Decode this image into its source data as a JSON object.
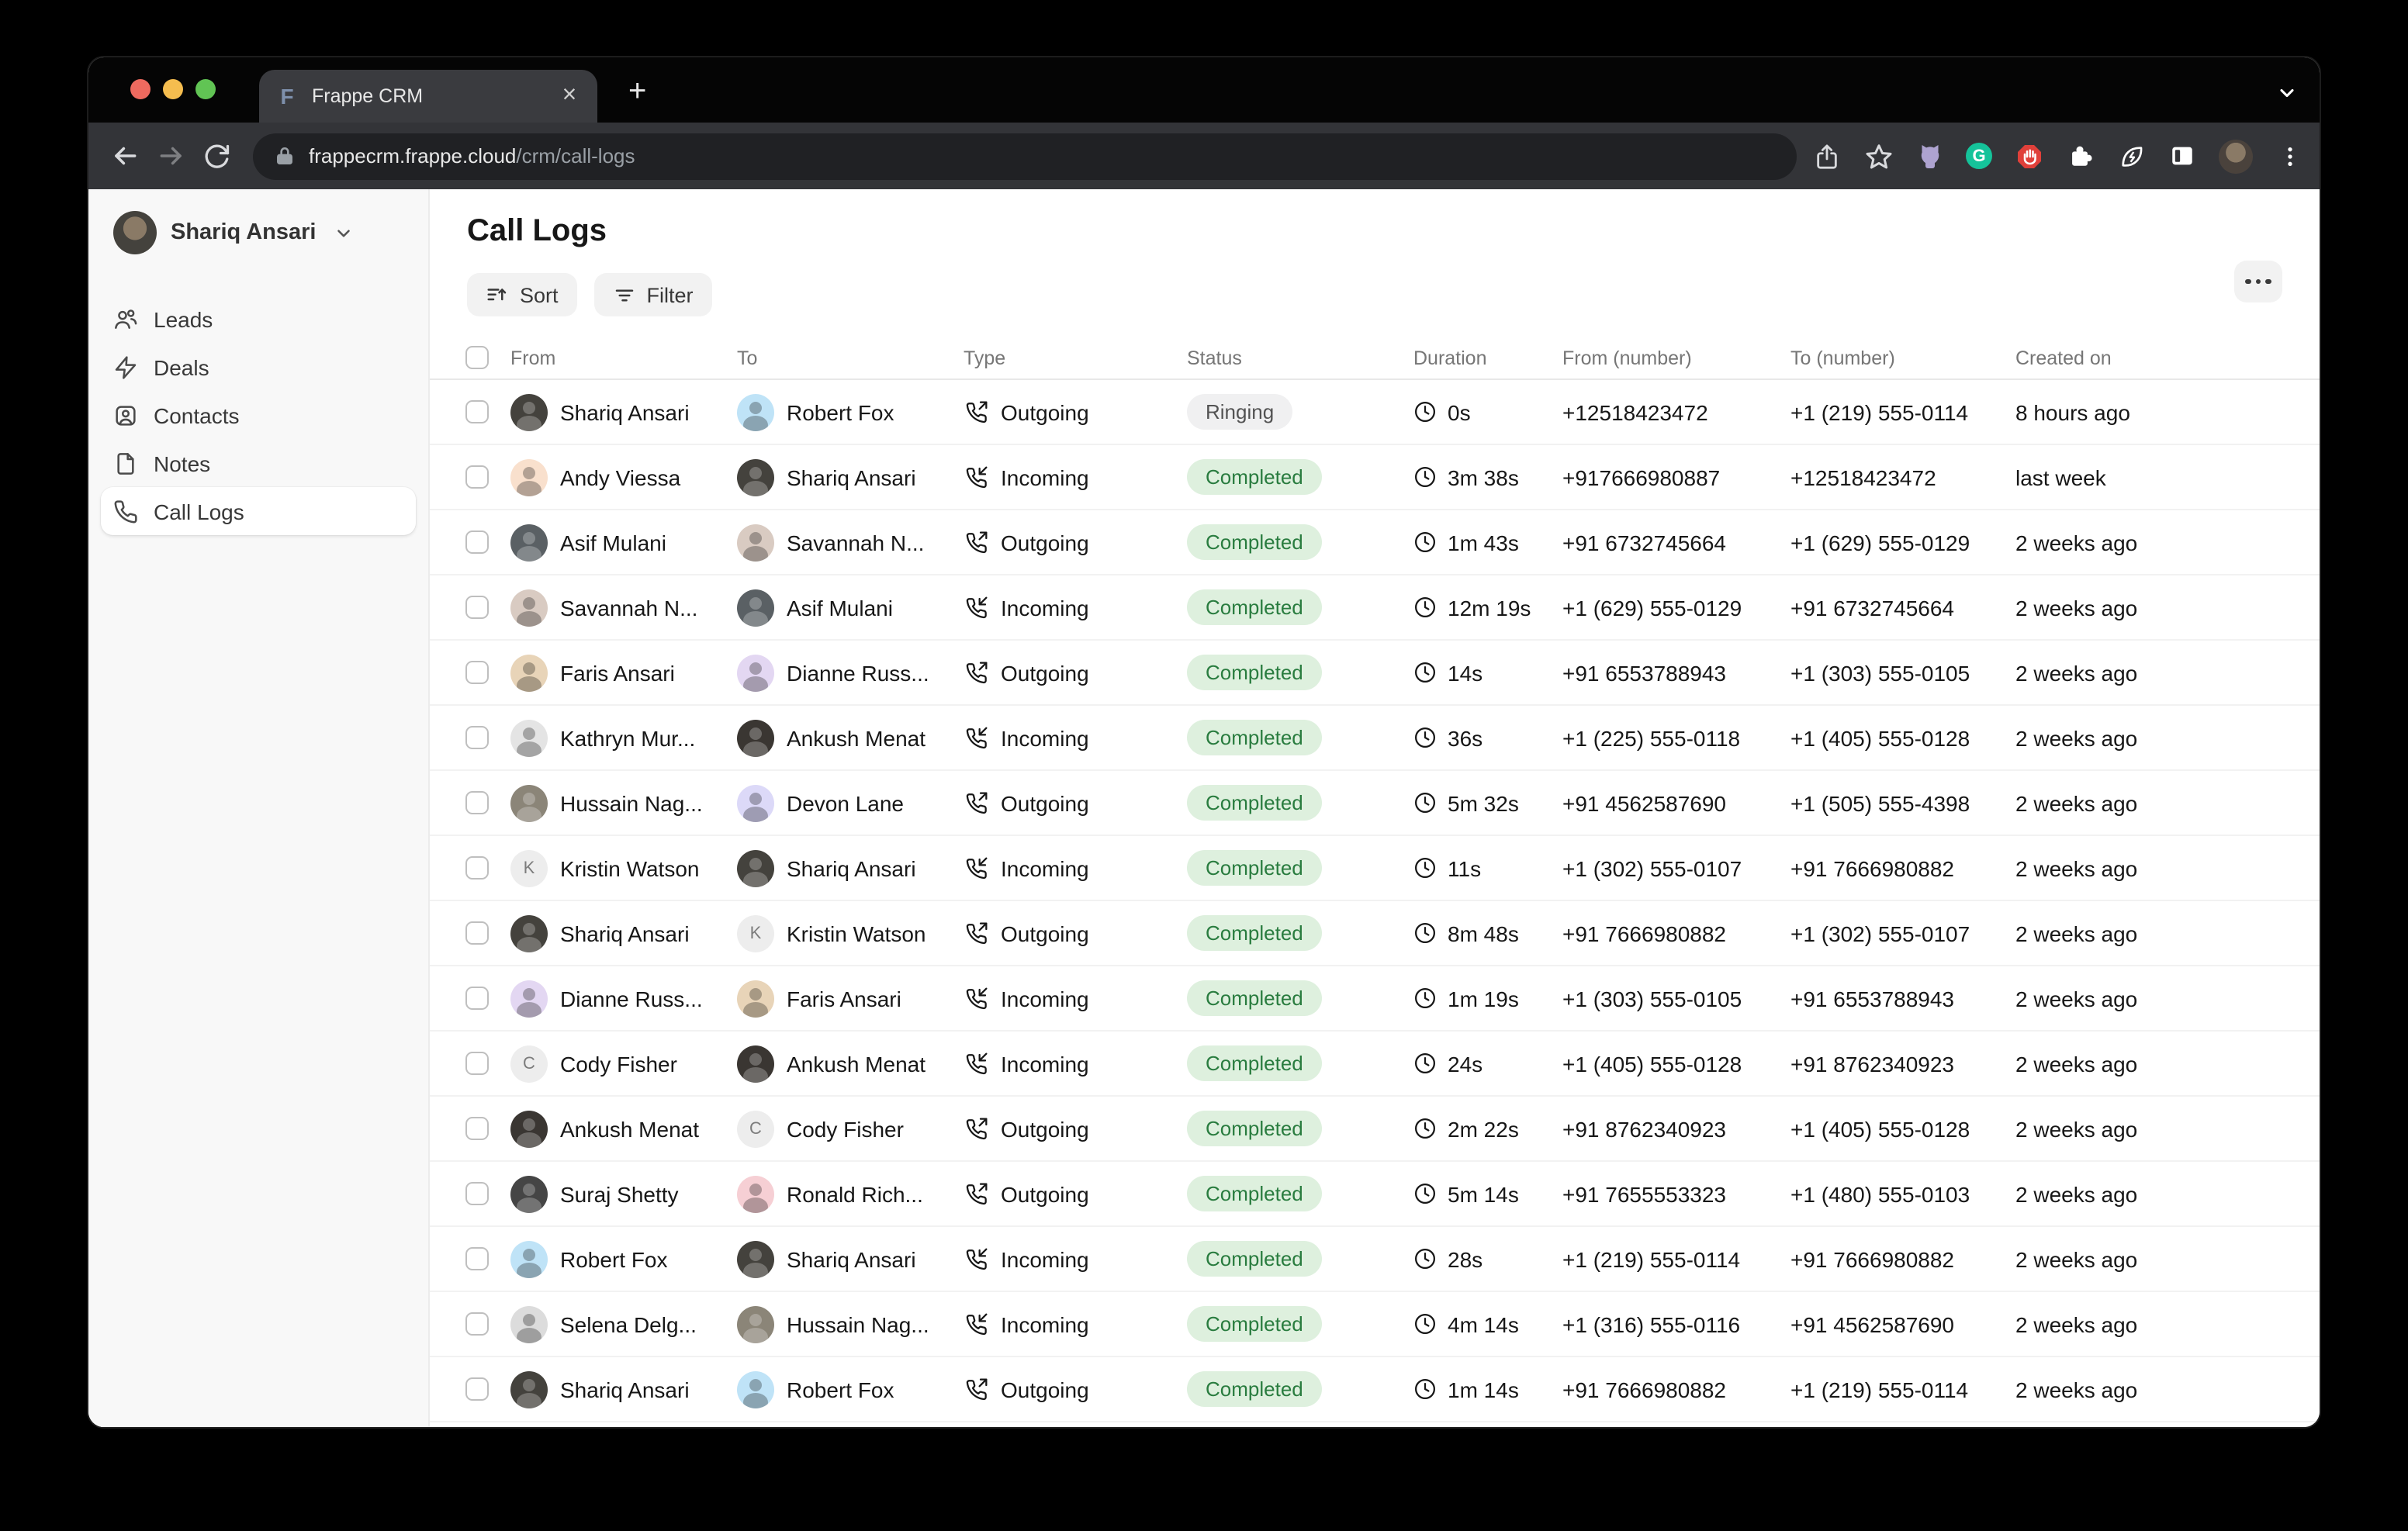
{
  "browser": {
    "tab_title": "Frappe CRM",
    "tab_favicon": "F",
    "url_host": "frappecrm.frappe.cloud",
    "url_path": "/crm/call-logs",
    "traffic_lights": [
      "#ee6a5f",
      "#f5bd4f",
      "#61c454"
    ],
    "grammarly_letter": "G"
  },
  "sidebar": {
    "user": "Shariq Ansari",
    "items": [
      {
        "label": "Leads",
        "icon": "leads-icon"
      },
      {
        "label": "Deals",
        "icon": "deals-icon"
      },
      {
        "label": "Contacts",
        "icon": "contacts-icon"
      },
      {
        "label": "Notes",
        "icon": "notes-icon"
      },
      {
        "label": "Call Logs",
        "icon": "phone-icon",
        "active": true
      }
    ]
  },
  "main": {
    "title": "Call Logs",
    "sort_label": "Sort",
    "filter_label": "Filter"
  },
  "table": {
    "columns": [
      "From",
      "To",
      "Type",
      "Status",
      "Duration",
      "From (number)",
      "To (number)",
      "Created on"
    ],
    "rows": [
      {
        "from": {
          "name": "Shariq Ansari",
          "kind": "photo",
          "color": "#44423d"
        },
        "to": {
          "name": "Robert Fox",
          "kind": "face",
          "color": "#bfe3f7"
        },
        "type": "Outgoing",
        "status": "Ringing",
        "duration": "0s",
        "from_number": "+12518423472",
        "to_number": "+1 (219) 555-0114",
        "created": "8 hours ago"
      },
      {
        "from": {
          "name": "Andy Viessa",
          "kind": "face",
          "color": "#f9e0cd"
        },
        "to": {
          "name": "Shariq Ansari",
          "kind": "photo",
          "color": "#44423d"
        },
        "type": "Incoming",
        "status": "Completed",
        "duration": "3m 38s",
        "from_number": "+917666980887",
        "to_number": "+12518423472",
        "created": "last week"
      },
      {
        "from": {
          "name": "Asif Mulani",
          "kind": "photo",
          "color": "#5a6064"
        },
        "to": {
          "name": "Savannah N...",
          "kind": "face",
          "color": "#d9cbc2"
        },
        "type": "Outgoing",
        "status": "Completed",
        "duration": "1m 43s",
        "from_number": "+91 6732745664",
        "to_number": "+1 (629) 555-0129",
        "created": "2 weeks ago"
      },
      {
        "from": {
          "name": "Savannah N...",
          "kind": "face",
          "color": "#d9cbc2"
        },
        "to": {
          "name": "Asif Mulani",
          "kind": "photo",
          "color": "#5a6064"
        },
        "type": "Incoming",
        "status": "Completed",
        "duration": "12m 19s",
        "from_number": "+1 (629) 555-0129",
        "to_number": "+91 6732745664",
        "created": "2 weeks ago"
      },
      {
        "from": {
          "name": "Faris Ansari",
          "kind": "face",
          "color": "#e8d4b8"
        },
        "to": {
          "name": "Dianne Russ...",
          "kind": "face",
          "color": "#e3d7f2"
        },
        "type": "Outgoing",
        "status": "Completed",
        "duration": "14s",
        "from_number": "+91 6553788943",
        "to_number": "+1 (303) 555-0105",
        "created": "2 weeks ago"
      },
      {
        "from": {
          "name": "Kathryn Mur...",
          "kind": "face",
          "color": "#e4e4e4"
        },
        "to": {
          "name": "Ankush Menat",
          "kind": "photo",
          "color": "#3a3632"
        },
        "type": "Incoming",
        "status": "Completed",
        "duration": "36s",
        "from_number": "+1 (225) 555-0118",
        "to_number": "+1 (405) 555-0128",
        "created": "2 weeks ago"
      },
      {
        "from": {
          "name": "Hussain Nag...",
          "kind": "photo",
          "color": "#8b8578"
        },
        "to": {
          "name": "Devon Lane",
          "kind": "face",
          "color": "#dcd9f8"
        },
        "type": "Outgoing",
        "status": "Completed",
        "duration": "5m 32s",
        "from_number": "+91 4562587690",
        "to_number": "+1 (505) 555-4398",
        "created": "2 weeks ago"
      },
      {
        "from": {
          "name": "Kristin Watson",
          "kind": "letter",
          "letter": "K",
          "color": "#ededed"
        },
        "to": {
          "name": "Shariq Ansari",
          "kind": "photo",
          "color": "#44423d"
        },
        "type": "Incoming",
        "status": "Completed",
        "duration": "11s",
        "from_number": "+1 (302) 555-0107",
        "to_number": "+91 7666980882",
        "created": "2 weeks ago"
      },
      {
        "from": {
          "name": "Shariq Ansari",
          "kind": "photo",
          "color": "#44423d"
        },
        "to": {
          "name": "Kristin Watson",
          "kind": "letter",
          "letter": "K",
          "color": "#ededed"
        },
        "type": "Outgoing",
        "status": "Completed",
        "duration": "8m 48s",
        "from_number": "+91 7666980882",
        "to_number": "+1 (302) 555-0107",
        "created": "2 weeks ago"
      },
      {
        "from": {
          "name": "Dianne Russ...",
          "kind": "face",
          "color": "#e3d7f2"
        },
        "to": {
          "name": "Faris Ansari",
          "kind": "face",
          "color": "#e8d4b8"
        },
        "type": "Incoming",
        "status": "Completed",
        "duration": "1m 19s",
        "from_number": "+1 (303) 555-0105",
        "to_number": "+91 6553788943",
        "created": "2 weeks ago"
      },
      {
        "from": {
          "name": "Cody Fisher",
          "kind": "letter",
          "letter": "C",
          "color": "#ededed"
        },
        "to": {
          "name": "Ankush Menat",
          "kind": "photo",
          "color": "#3a3632"
        },
        "type": "Incoming",
        "status": "Completed",
        "duration": "24s",
        "from_number": "+1 (405) 555-0128",
        "to_number": "+91 8762340923",
        "created": "2 weeks ago"
      },
      {
        "from": {
          "name": "Ankush Menat",
          "kind": "photo",
          "color": "#3a3632"
        },
        "to": {
          "name": "Cody Fisher",
          "kind": "letter",
          "letter": "C",
          "color": "#ededed"
        },
        "type": "Outgoing",
        "status": "Completed",
        "duration": "2m 22s",
        "from_number": "+91 8762340923",
        "to_number": "+1 (405) 555-0128",
        "created": "2 weeks ago"
      },
      {
        "from": {
          "name": "Suraj Shetty",
          "kind": "photo",
          "color": "#454545"
        },
        "to": {
          "name": "Ronald Rich...",
          "kind": "face",
          "color": "#f6cfd4"
        },
        "type": "Outgoing",
        "status": "Completed",
        "duration": "5m 14s",
        "from_number": "+91 7655553323",
        "to_number": "+1 (480) 555-0103",
        "created": "2 weeks ago"
      },
      {
        "from": {
          "name": "Robert Fox",
          "kind": "face",
          "color": "#bfe3f7"
        },
        "to": {
          "name": "Shariq Ansari",
          "kind": "photo",
          "color": "#44423d"
        },
        "type": "Incoming",
        "status": "Completed",
        "duration": "28s",
        "from_number": "+1 (219) 555-0114",
        "to_number": "+91 7666980882",
        "created": "2 weeks ago"
      },
      {
        "from": {
          "name": "Selena Delg...",
          "kind": "face",
          "color": "#dcdcdc"
        },
        "to": {
          "name": "Hussain Nag...",
          "kind": "photo",
          "color": "#8b8578"
        },
        "type": "Incoming",
        "status": "Completed",
        "duration": "4m 14s",
        "from_number": "+1 (316) 555-0116",
        "to_number": "+91 4562587690",
        "created": "2 weeks ago"
      },
      {
        "from": {
          "name": "Shariq Ansari",
          "kind": "photo",
          "color": "#44423d"
        },
        "to": {
          "name": "Robert Fox",
          "kind": "face",
          "color": "#bfe3f7"
        },
        "type": "Outgoing",
        "status": "Completed",
        "duration": "1m 14s",
        "from_number": "+91 7666980882",
        "to_number": "+1 (219) 555-0114",
        "created": "2 weeks ago"
      }
    ],
    "partial_row": {
      "from_color": "#ada27c",
      "to_color": "#e3e3e3"
    }
  },
  "colors": {
    "status_completed_bg": "#def0de",
    "status_completed_text": "#297c3f",
    "status_ringing_bg": "#f0f0f1",
    "status_ringing_text": "#535353",
    "sidebar_bg": "#f8f8f8",
    "toolbar_bg": "#333438"
  }
}
